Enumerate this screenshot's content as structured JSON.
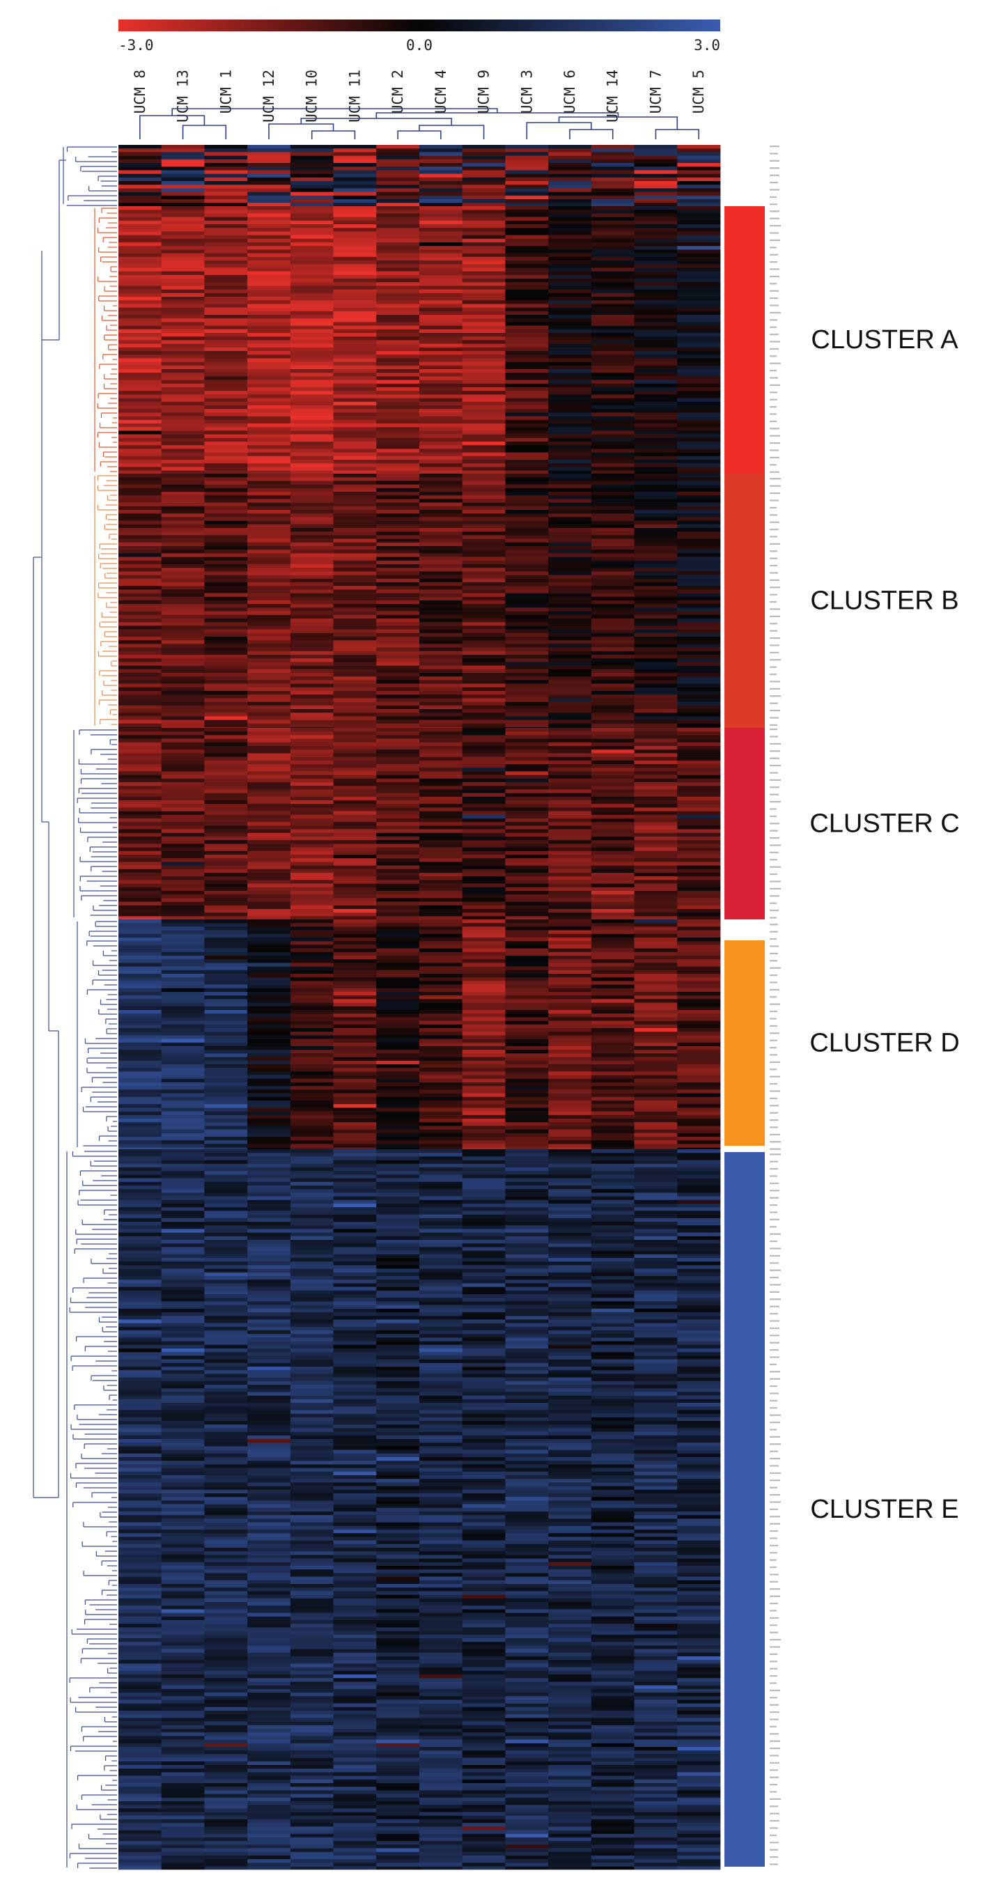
{
  "chart_data": {
    "type": "heatmap",
    "color_scale": {
      "min_label": "-3.0",
      "mid_label": "0.0",
      "max_label": "3.0",
      "min": -3.0,
      "mid": 0.0,
      "max": 3.0,
      "low_color": "#e8312b",
      "mid_color": "#050505",
      "high_color": "#3a5cb0"
    },
    "columns": [
      "UCM 8",
      "UCM 13",
      "UCM 1",
      "UCM 12",
      "UCM 10",
      "UCM 11",
      "UCM 2",
      "UCM 4",
      "UCM 9",
      "UCM 3",
      "UCM 6",
      "UCM 14",
      "UCM 7",
      "UCM 5"
    ],
    "clusters": [
      {
        "name": "CLUSTER A",
        "color": "#ee2b24",
        "profile": [
          -2.1,
          -1.9,
          -1.8,
          -2.2,
          -2.3,
          -2.2,
          -1.8,
          -1.8,
          -1.8,
          -0.8,
          0.1,
          -0.3,
          0.0,
          0.2
        ]
      },
      {
        "name": "CLUSTER B",
        "color": "#dc3a26",
        "profile": [
          -1.3,
          -1.2,
          -1.0,
          -1.4,
          -1.5,
          -1.4,
          -1.1,
          -1.0,
          -1.2,
          -0.6,
          -0.3,
          -0.5,
          -0.2,
          0.0
        ]
      },
      {
        "name": "CLUSTER C",
        "color": "#d81f36",
        "profile": [
          -1.2,
          -1.2,
          -1.1,
          -1.5,
          -1.6,
          -1.4,
          -1.0,
          -0.9,
          -0.7,
          -1.0,
          -1.1,
          -1.0,
          -1.3,
          -1.0
        ]
      },
      {
        "name": "CLUSTER D",
        "color": "#f6931f",
        "profile": [
          1.6,
          1.4,
          1.3,
          0.2,
          -0.5,
          -1.0,
          -0.4,
          -0.8,
          -1.6,
          -0.7,
          -1.4,
          -0.9,
          -1.2,
          -0.9
        ]
      },
      {
        "name": "CLUSTER E",
        "color": "#3a5bab",
        "profile": [
          1.3,
          1.2,
          1.2,
          1.3,
          1.3,
          1.2,
          0.9,
          1.1,
          1.0,
          1.2,
          1.1,
          0.9,
          1.2,
          1.1
        ]
      }
    ]
  }
}
